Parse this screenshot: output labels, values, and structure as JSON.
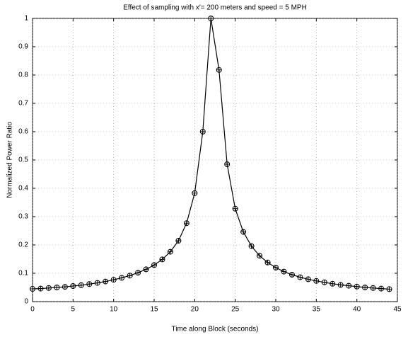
{
  "chart_data": {
    "type": "line",
    "title": "Effect of sampling with x′= 200 meters and speed = 5 MPH",
    "x_label": "Time along Block (seconds)",
    "y_label": "Normalized Power Ratio",
    "x": [
      0,
      1,
      2,
      3,
      4,
      5,
      6,
      7,
      8,
      9,
      10,
      11,
      12,
      13,
      14,
      15,
      16,
      17,
      18,
      19,
      20,
      21,
      22,
      23,
      24,
      25,
      26,
      27,
      28,
      29,
      30,
      31,
      32,
      33,
      34,
      35,
      36,
      37,
      38,
      39,
      40,
      41,
      42,
      43,
      44
    ],
    "series": [
      {
        "name": "Normalized Power Ratio",
        "color": "#000000",
        "values": [
          0.045,
          0.046,
          0.048,
          0.05,
          0.052,
          0.055,
          0.058,
          0.062,
          0.066,
          0.071,
          0.077,
          0.084,
          0.092,
          0.102,
          0.114,
          0.129,
          0.149,
          0.176,
          0.215,
          0.277,
          0.383,
          0.6,
          1.0,
          0.818,
          0.485,
          0.328,
          0.246,
          0.196,
          0.162,
          0.138,
          0.12,
          0.106,
          0.095,
          0.086,
          0.079,
          0.073,
          0.068,
          0.063,
          0.059,
          0.056,
          0.053,
          0.05,
          0.048,
          0.046,
          0.044
        ]
      }
    ],
    "xlim": [
      0,
      45
    ],
    "xticks": [
      0,
      5,
      10,
      15,
      20,
      25,
      30,
      35,
      40,
      45
    ],
    "ylim": [
      0,
      1
    ],
    "yticks": [
      0,
      0.1,
      0.2,
      0.3,
      0.4,
      0.5,
      0.6,
      0.7,
      0.8,
      0.9,
      1
    ],
    "grid": true
  }
}
